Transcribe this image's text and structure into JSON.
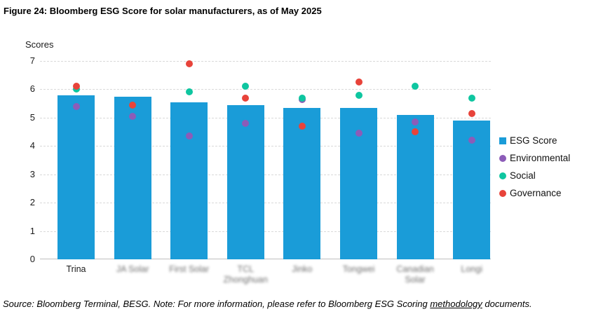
{
  "page": {
    "title": "Figure 24: Bloomberg ESG Score for solar manufacturers, as of May 2025",
    "source_note": {
      "prefix": "Source: Bloomberg Terminal, BESG. Note: For more information, please refer to Bloomberg ESG Scoring ",
      "link_text": "methodology",
      "suffix": " documents."
    }
  },
  "chart_data": {
    "type": "bar",
    "title": "Bloomberg ESG Score for solar manufacturers, as of May 2025",
    "ylabel": "Scores",
    "xlabel": "",
    "ylim": [
      0,
      7
    ],
    "yticks": [
      0,
      1,
      2,
      3,
      4,
      5,
      6,
      7
    ],
    "grid": "horizontal-dashed",
    "legend_position": "right",
    "categories": [
      "Trina",
      "JA Solar",
      "First Solar",
      "TCL Zhonghuan",
      "Jinko",
      "Tongwei",
      "Canadian Solar",
      "Longi"
    ],
    "categories_blurred": [
      false,
      true,
      true,
      true,
      true,
      true,
      true,
      true
    ],
    "series": [
      {
        "name": "ESG Score",
        "render": "bar",
        "marker": "square",
        "color": "#1a9cd8",
        "values": [
          5.78,
          5.73,
          5.55,
          5.43,
          5.35,
          5.35,
          5.1,
          4.9
        ]
      },
      {
        "name": "Environmental",
        "render": "point",
        "marker": "circle",
        "color": "#8c5cb8",
        "values": [
          5.4,
          5.05,
          4.35,
          4.8,
          5.65,
          4.45,
          4.85,
          4.2
        ]
      },
      {
        "name": "Social",
        "render": "point",
        "marker": "circle",
        "color": "#0ec6a0",
        "values": [
          6.02,
          5.45,
          5.9,
          6.1,
          5.7,
          5.8,
          6.1,
          5.7
        ]
      },
      {
        "name": "Governance",
        "render": "point",
        "marker": "circle",
        "color": "#e8433a",
        "values": [
          6.1,
          5.45,
          6.9,
          5.7,
          4.7,
          6.25,
          4.5,
          5.15
        ]
      }
    ]
  }
}
